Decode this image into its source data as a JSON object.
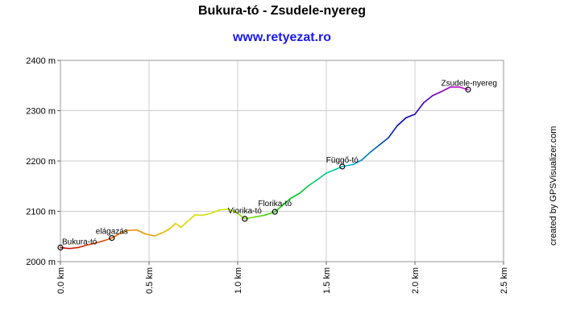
{
  "header": {
    "title": "Bukura-tó - Zsudele-nyereg",
    "subtitle": "www.retyezat.ro",
    "watermark": "created by GPSVisualizer.com"
  },
  "chart_data": {
    "type": "line",
    "title": "Bukura-tó - Zsudele-nyereg",
    "subtitle": "www.retyezat.ro",
    "xlabel": "",
    "ylabel": "",
    "xlim": [
      0,
      2.5
    ],
    "ylim": [
      2000,
      2400
    ],
    "x_ticks": [
      "0.0 km",
      "0.5 km",
      "1.0 km",
      "1.5 km",
      "2.0 km",
      "2.5 km"
    ],
    "y_ticks": [
      "2000 m",
      "2100 m",
      "2200 m",
      "2300 m",
      "2400 m"
    ],
    "grid": true,
    "series": [
      {
        "x": [
          0.0,
          0.05,
          0.1,
          0.15,
          0.2,
          0.25,
          0.29,
          0.33,
          0.38,
          0.43,
          0.48,
          0.53,
          0.58,
          0.62,
          0.65,
          0.68,
          0.72,
          0.76,
          0.8,
          0.85,
          0.9,
          0.95,
          1.0,
          1.04,
          1.1,
          1.15,
          1.21,
          1.25,
          1.3,
          1.35,
          1.4,
          1.45,
          1.5,
          1.55,
          1.59,
          1.65,
          1.7,
          1.75,
          1.8,
          1.85,
          1.9,
          1.95,
          2.0,
          2.05,
          2.1,
          2.15,
          2.2,
          2.25,
          2.3
        ],
        "y": [
          2028,
          2026,
          2028,
          2033,
          2037,
          2042,
          2047,
          2055,
          2062,
          2063,
          2055,
          2051,
          2058,
          2066,
          2076,
          2068,
          2081,
          2093,
          2092,
          2096,
          2103,
          2104,
          2096,
          2085,
          2089,
          2092,
          2099,
          2111,
          2126,
          2136,
          2151,
          2163,
          2176,
          2183,
          2189,
          2193,
          2202,
          2218,
          2232,
          2246,
          2270,
          2286,
          2293,
          2316,
          2330,
          2338,
          2347,
          2347,
          2342
        ]
      }
    ],
    "gradient_colors": [
      "#cc0000",
      "#e87800",
      "#e8d000",
      "#c8e800",
      "#00c800",
      "#00c8c8",
      "#0000aa",
      "#cc00cc"
    ],
    "waypoints": [
      {
        "label": "Bukura-tó",
        "x": 0.0,
        "y": 2028
      },
      {
        "label": "elágazás",
        "x": 0.29,
        "y": 2047
      },
      {
        "label": "Viorika-tó",
        "x": 1.04,
        "y": 2085
      },
      {
        "label": "Florika-tó",
        "x": 1.21,
        "y": 2099
      },
      {
        "label": "Függő-tó",
        "x": 1.59,
        "y": 2189
      },
      {
        "label": "Zsudele-nyereg",
        "x": 2.3,
        "y": 2342
      }
    ]
  }
}
